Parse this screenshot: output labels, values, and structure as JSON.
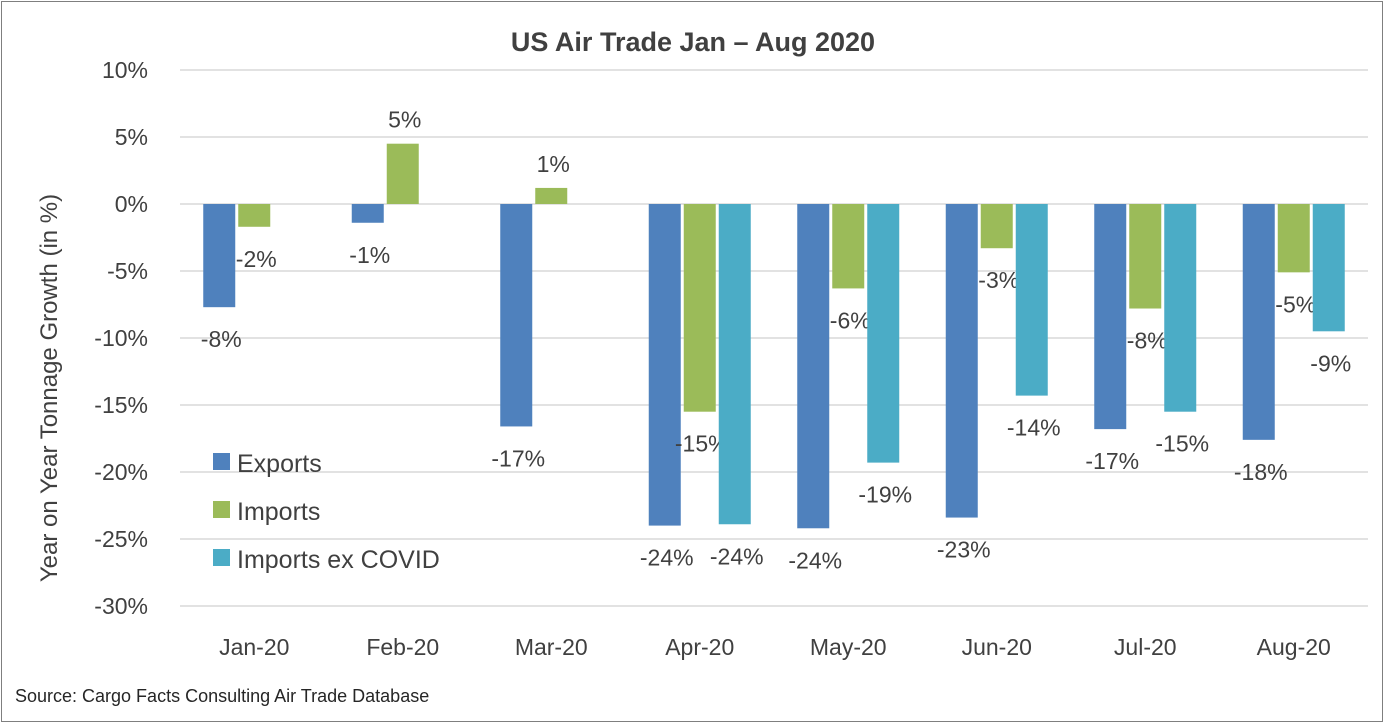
{
  "chart_data": {
    "type": "bar",
    "title": "US Air Trade Jan – Aug 2020",
    "ylabel": "Year on Year Tonnage Growth (in %)",
    "xlabel": "",
    "ylim": [
      -30,
      10
    ],
    "yticks": [
      10,
      5,
      0,
      -5,
      -10,
      -15,
      -20,
      -25,
      -30
    ],
    "ytick_labels": [
      "10%",
      "5%",
      "0%",
      "-5%",
      "-10%",
      "-15%",
      "-20%",
      "-25%",
      "-30%"
    ],
    "grid": true,
    "legend_position": "bottom-left",
    "categories": [
      "Jan-20",
      "Feb-20",
      "Mar-20",
      "Apr-20",
      "May-20",
      "Jun-20",
      "Jul-20",
      "Aug-20"
    ],
    "series": [
      {
        "name": "Exports",
        "color": "#4f81bd",
        "values": [
          -7.7,
          -1.4,
          -16.6,
          -24.0,
          -24.2,
          -23.4,
          -16.8,
          -17.6
        ],
        "labels": [
          "-8%",
          "-1%",
          "-17%",
          "-24%",
          "-24%",
          "-23%",
          "-17%",
          "-18%"
        ]
      },
      {
        "name": "Imports",
        "color": "#9bbb59",
        "values": [
          -1.7,
          4.5,
          1.2,
          -15.5,
          -6.3,
          -3.3,
          -7.8,
          -5.1
        ],
        "labels": [
          "-2%",
          "5%",
          "1%",
          "-15%",
          "-6%",
          "-3%",
          "-8%",
          "-5%"
        ]
      },
      {
        "name": "Imports ex COVID",
        "color": "#4bacc6",
        "values": [
          null,
          null,
          null,
          -23.9,
          -19.3,
          -14.3,
          -15.5,
          -9.5
        ],
        "labels": [
          null,
          null,
          null,
          "-24%",
          "-19%",
          "-14%",
          "-15%",
          "-9%"
        ]
      }
    ]
  },
  "source": "Source: Cargo Facts Consulting Air Trade Database"
}
